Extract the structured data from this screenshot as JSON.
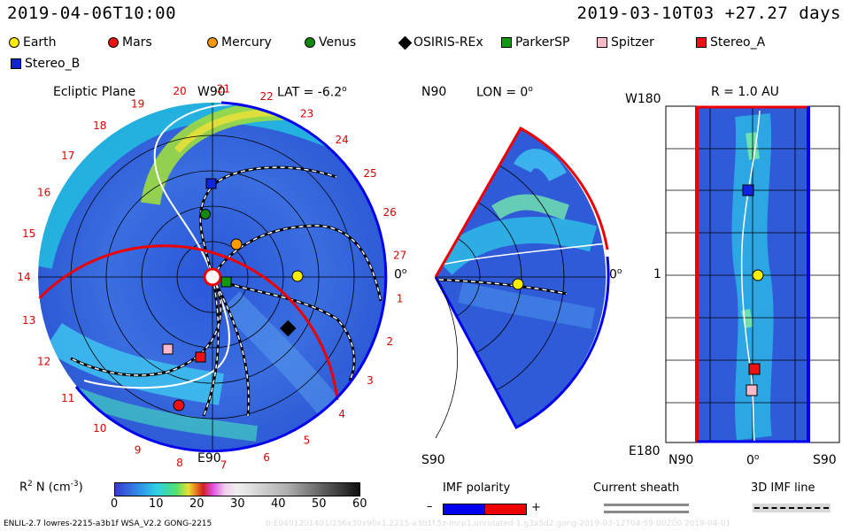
{
  "header": {
    "left_time": "2019-04-06T10:00",
    "right_time": "2019-03-10T03 +27.27 days"
  },
  "legend": [
    {
      "name": "Earth",
      "color": "#ffee00",
      "shape": "circle"
    },
    {
      "name": "Mars",
      "color": "#ee1111",
      "shape": "circle"
    },
    {
      "name": "Mercury",
      "color": "#ff9900",
      "shape": "circle"
    },
    {
      "name": "Venus",
      "color": "#118811",
      "shape": "circle"
    },
    {
      "name": "OSIRIS-REx",
      "color": "#000000",
      "shape": "diamond"
    },
    {
      "name": "ParkerSP",
      "color": "#119911",
      "shape": "square"
    },
    {
      "name": "Spitzer",
      "color": "#ffbbcc",
      "shape": "square"
    },
    {
      "name": "Stereo_A",
      "color": "#ee1111",
      "shape": "square"
    },
    {
      "name": "Stereo_B",
      "color": "#1122dd",
      "shape": "square"
    }
  ],
  "ecliptic": {
    "title": "Ecliptic Plane",
    "top_label": "W90",
    "bottom_label": "E90",
    "right_label": "0",
    "lat_label": "LAT = -6.2",
    "degree": "o",
    "carrington_labels": [
      "20",
      "21",
      "22",
      "23",
      "24",
      "25",
      "26",
      "27",
      "1",
      "2",
      "3",
      "4",
      "5",
      "6",
      "7",
      "8",
      "9",
      "10",
      "11",
      "12",
      "13",
      "14",
      "15",
      "16",
      "17",
      "18",
      "19"
    ]
  },
  "meridional": {
    "top_label": "N90",
    "bottom_label": "S90",
    "lon_label": "LON = 0",
    "right_label": "0",
    "degree": "o"
  },
  "radial": {
    "title": "R = 1.0 AU",
    "top_left": "W180",
    "bottom_left": "E180",
    "mid_left": "1",
    "bottom_labels": [
      "N90",
      "0",
      "S90"
    ],
    "degree": "o"
  },
  "colorbar": {
    "label": "R",
    "label_sup": "2",
    "label_rest": " N (cm",
    "label_exp": "-3",
    "label_end": ")",
    "ticks": [
      "0",
      "10",
      "20",
      "30",
      "40",
      "50",
      "60"
    ]
  },
  "imf": {
    "title": "IMF polarity",
    "minus": "–",
    "plus": "+",
    "colors": {
      "negative": "#0000ee",
      "positive": "#ee0000"
    }
  },
  "sheath": {
    "title": "Current sheath"
  },
  "imf3d": {
    "title": "3D IMF line"
  },
  "footer": {
    "left": "ENLIL-2.7 lowres-2215-a3b1f WSA_V2.2 GONG-2215",
    "right": "b:E0401201401/256x30x90x1.2215-a3b1f.5z-mcp1.unrotated-1.g3a5d2.gong-2019-03-12T04:59:00Z00    2019-04-01"
  }
}
